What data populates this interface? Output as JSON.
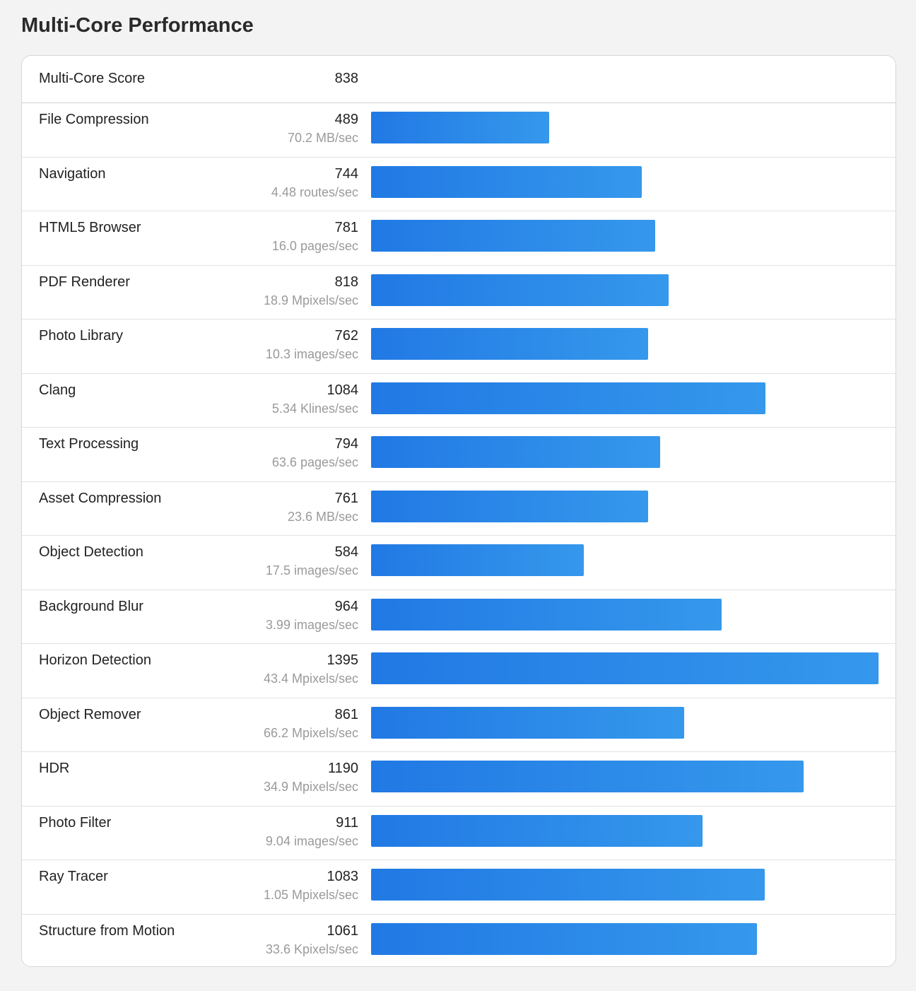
{
  "page": {
    "title": "Multi-Core Performance"
  },
  "summary": {
    "label": "Multi-Core Score",
    "value": "838"
  },
  "chart_data": {
    "type": "bar",
    "orientation": "horizontal",
    "bar_color": "#2a86e8",
    "xlim": [
      0,
      1395
    ],
    "categories": [
      "File Compression",
      "Navigation",
      "HTML5 Browser",
      "PDF Renderer",
      "Photo Library",
      "Clang",
      "Text Processing",
      "Asset Compression",
      "Object Detection",
      "Background Blur",
      "Horizon Detection",
      "Object Remover",
      "HDR",
      "Photo Filter",
      "Ray Tracer",
      "Structure from Motion"
    ],
    "values": [
      489,
      744,
      781,
      818,
      762,
      1084,
      794,
      761,
      584,
      964,
      1395,
      861,
      1190,
      911,
      1083,
      1061
    ],
    "rates": [
      "70.2 MB/sec",
      "4.48 routes/sec",
      "16.0 pages/sec",
      "18.9 Mpixels/sec",
      "10.3 images/sec",
      "5.34 Klines/sec",
      "63.6 pages/sec",
      "23.6 MB/sec",
      "17.5 images/sec",
      "3.99 images/sec",
      "43.4 Mpixels/sec",
      "66.2 Mpixels/sec",
      "34.9 Mpixels/sec",
      "9.04 images/sec",
      "1.05 Mpixels/sec",
      "33.6 Kpixels/sec"
    ]
  }
}
